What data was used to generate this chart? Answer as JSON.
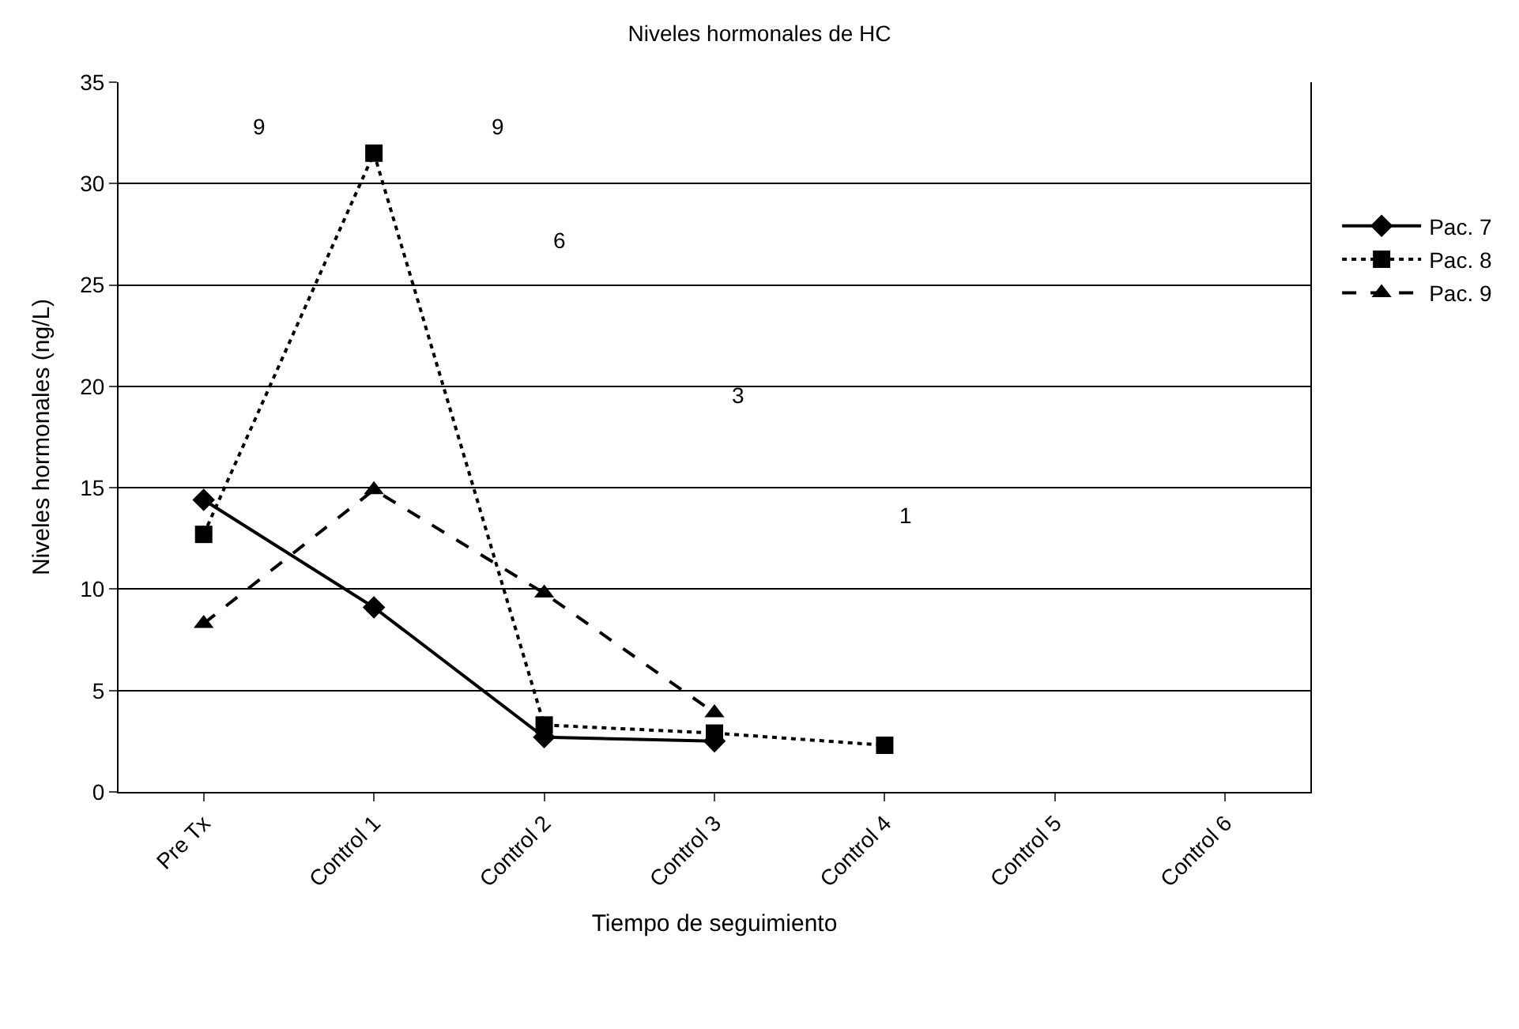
{
  "chart_data": {
    "type": "line",
    "title": "Niveles hormonales de HC",
    "xlabel": "Tiempo de seguimiento",
    "ylabel": "Niveles hormonales (ng/L)",
    "categories": [
      "Pre Tx",
      "Control 1",
      "Control 2",
      "Control 3",
      "Control 4",
      "Control 5",
      "Control 6"
    ],
    "series": [
      {
        "name": "Pac. 7",
        "color": "#000000",
        "marker": "diamond",
        "line_style": "solid",
        "values": [
          14.4,
          9.1,
          2.7,
          2.5,
          null,
          null,
          null
        ]
      },
      {
        "name": "Pac. 8",
        "color": "#000000",
        "marker": "square",
        "line_style": "dotted",
        "values": [
          12.7,
          31.5,
          3.3,
          2.9,
          2.3,
          null,
          null
        ]
      },
      {
        "name": "Pac. 9",
        "color": "#000000",
        "marker": "triangle",
        "line_style": "dashed",
        "values": [
          8.3,
          14.9,
          9.8,
          3.9,
          null,
          null,
          null
        ]
      }
    ],
    "annotations": [
      "9",
      "9",
      "6",
      "3",
      "1"
    ],
    "ylim": [
      0,
      35
    ],
    "yticks": [
      0,
      5,
      10,
      15,
      20,
      25,
      30,
      35
    ],
    "grid": "y",
    "legend": "right"
  }
}
